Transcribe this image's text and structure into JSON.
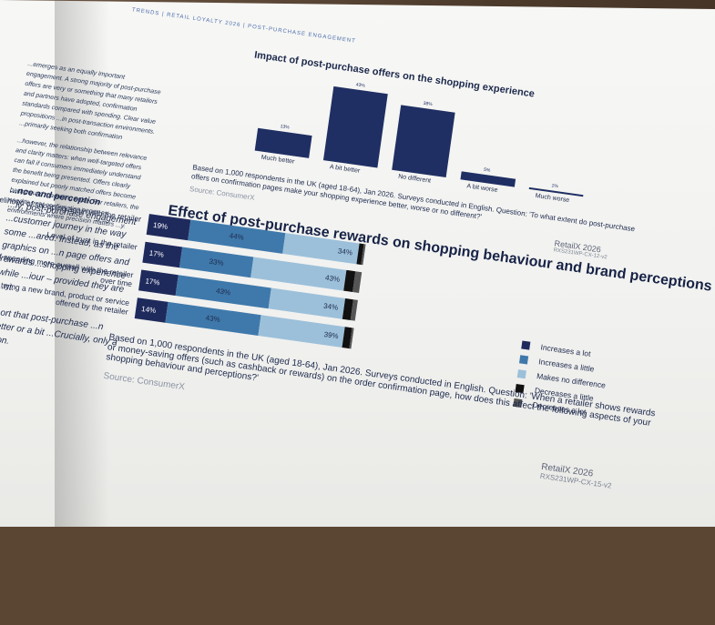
{
  "header": {
    "text": "Trends | Retail Loyalty 2026 | Post-purchase engagement"
  },
  "intro": {
    "p1": "...emerges as an equally important engagement. A strong majority of post-purchase offers are very or something that many retailers and partners have adopted, confirmation standards compared with spending. Clear value propositions ...in post-transaction environments. ...primarily seeking both confirmation",
    "p2": "...however, the relationship between relevance and clarity matters: when well-targeted offers can fall if consumers immediately understand the benefit being presented. Offers clearly explained but poorly matched offers become background marketing noise. For retailers, the need to treat confirmation pages as environments where precision matters ...y."
  },
  "section": {
    "heading": "...nce and perception",
    "p1": "...ly, post-purchase engagement ...customer journey in the way some ...ared. Instead, as the graphics on ...n page offers and rewards ...shopping experience while ...iour – provided they are ...nt.",
    "p2": "...ort that post-purchase ...n better or a bit ...Crucially, only a ...on."
  },
  "chart1": {
    "title": "Impact of post-purchase offers on the shopping experience",
    "note": "Based on 1,000 respondents in the UK (aged 18-64), Jan 2026. Surveys conducted in English. Question: 'To what extent do post-purchase offers on confirmation pages make your shopping experience better, worse or no different?'",
    "source": "Source: ConsumerX",
    "logo": "RetailX 2026",
    "code": "RXS231WP-CX-12-v2"
  },
  "chart_data": [
    {
      "type": "bar",
      "title": "Impact of post-purchase offers on the shopping experience",
      "categories": [
        "Much better",
        "A bit better",
        "No different",
        "A bit worse",
        "Much worse"
      ],
      "values": [
        13,
        43,
        38,
        5,
        1
      ],
      "value_labels": [
        "13%",
        "43%",
        "38%",
        "5%",
        "1%"
      ]
    },
    {
      "type": "bar",
      "stacked": "horizontal-100",
      "title": "Effect of post-purchase rewards on shopping behaviour and brand perceptions",
      "categories": [
        "Likelihood of shopping again with the retailer",
        "Level of trust in the retailer",
        "Likelihood of spending more overall with the retailer over time",
        "Likelihood of trying a new brand, product or service offered by the retailer"
      ],
      "series": [
        {
          "name": "Increases a lot",
          "color": "#1f2a5c",
          "values": [
            19,
            17,
            17,
            14
          ]
        },
        {
          "name": "Increases a little",
          "color": "#3f79ab",
          "values": [
            44,
            33,
            43,
            43
          ]
        },
        {
          "name": "Makes no difference",
          "color": "#9cc0da",
          "values": [
            34,
            43,
            34,
            39
          ]
        },
        {
          "name": "Decreases a little",
          "color": "#111111",
          "values": [
            2,
            4,
            4,
            3
          ]
        },
        {
          "name": "Decreases a lot",
          "color": "#555555",
          "values": [
            1,
            3,
            2,
            1
          ]
        }
      ],
      "label_series": [
        "Increases a lot",
        "Increases a little",
        "Makes no difference"
      ]
    }
  ],
  "chart2": {
    "title": "Effect of post-purchase rewards on shopping behaviour and brand perceptions",
    "note": "Based on 1,000 respondents in the UK (aged 18-64), Jan 2026. Surveys conducted in English. Question: 'When a retailer shows rewards or money-saving offers (such as cashback or rewards) on the order confirmation page, how does this affect the following aspects of your shopping behaviour and perceptions?'",
    "source": "Source: ConsumerX",
    "logo": "RetailX 2026",
    "code": "RXS231WP-CX-15-v2"
  }
}
